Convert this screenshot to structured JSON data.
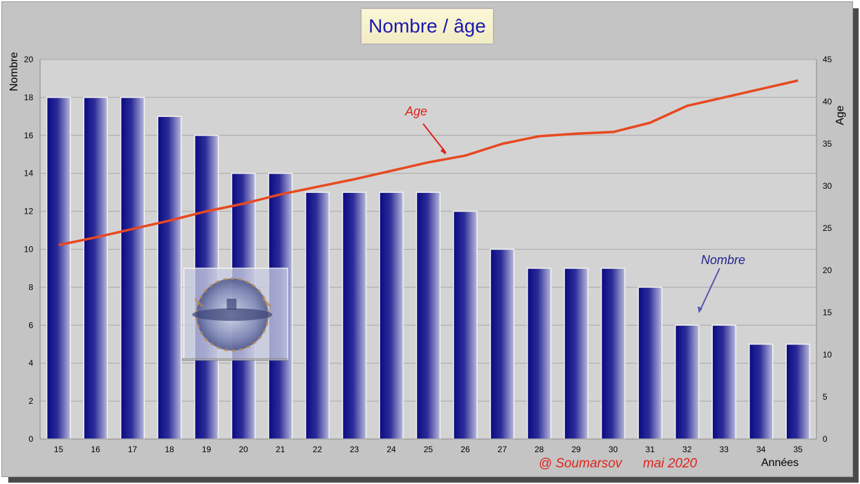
{
  "chart_data": {
    "type": "bar",
    "title": "Nombre / âge",
    "xlabel": "Années",
    "ylabel": "Nombre",
    "y2label": "Age",
    "categories": [
      "15",
      "16",
      "17",
      "18",
      "19",
      "20",
      "21",
      "22",
      "23",
      "24",
      "25",
      "26",
      "27",
      "28",
      "29",
      "30",
      "31",
      "32",
      "33",
      "34",
      "35"
    ],
    "ylim": [
      0,
      20
    ],
    "yticks": [
      0,
      2,
      4,
      6,
      8,
      10,
      12,
      14,
      16,
      18,
      20
    ],
    "y2lim": [
      0,
      45
    ],
    "y2ticks": [
      0,
      5,
      10,
      15,
      20,
      25,
      30,
      35,
      40,
      45
    ],
    "grid": true,
    "series": [
      {
        "name": "Nombre",
        "type": "bar",
        "axis": "left",
        "values": [
          18,
          18,
          18,
          17,
          16,
          14,
          14,
          13,
          13,
          13,
          13,
          12,
          10,
          9,
          9,
          9,
          8,
          6,
          6,
          5,
          5
        ],
        "color": "#10108a"
      },
      {
        "name": "Age",
        "type": "line",
        "axis": "right",
        "values": [
          23,
          23.9,
          24.9,
          25.9,
          27,
          27.9,
          29,
          29.9,
          30.8,
          31.8,
          32.8,
          33.6,
          35,
          35.9,
          36.2,
          36.4,
          37.5,
          39.5,
          40.5,
          41.5,
          42.5
        ],
        "color": "#e84820"
      }
    ],
    "annotations": [
      {
        "text": "Age",
        "color": "#e0231b"
      },
      {
        "text": "Nombre",
        "color": "#23238f"
      }
    ]
  },
  "credit": {
    "author": "@ Soumarsov",
    "date": "mai 2020"
  },
  "emblem": "submarine-badge"
}
